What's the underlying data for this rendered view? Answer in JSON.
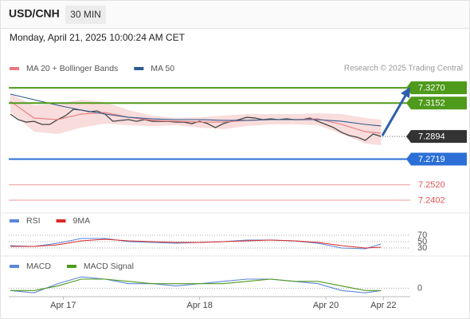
{
  "header": {
    "symbol": "USD/CNH",
    "interval": "30 MIN",
    "timestamp": "Monday, April 21, 2025 10:00:24 AM CET"
  },
  "chart_data": [
    {
      "type": "line",
      "source": "Research © 2025 Trading Central",
      "xlim": [
        -0.2,
        50.7
      ],
      "ylim": [
        7.2334,
        7.3332
      ],
      "price": {
        "color": "#444444",
        "values": [
          7.3067,
          7.3024,
          7.3005,
          7.3011,
          7.2987,
          7.2987,
          7.3024,
          7.3054,
          7.3104,
          7.3098,
          7.3085,
          7.3091,
          7.3067,
          7.3011,
          7.3018,
          7.3024,
          7.3011,
          7.3024,
          7.3011,
          7.3011,
          7.3011,
          7.3005,
          7.3005,
          7.2993,
          7.3011,
          7.2993,
          7.2962,
          7.2993,
          7.3011,
          7.3024,
          7.3042,
          7.3036,
          7.3024,
          7.303,
          7.3024,
          7.303,
          7.3024,
          7.3024,
          7.3036,
          7.3011,
          7.2987,
          7.2962,
          7.2925,
          7.2901,
          7.2888,
          7.2864,
          7.2913,
          7.2894
        ]
      },
      "series": [
        {
          "name": "MA 20 + Bollinger Bands",
          "color": "#e8797a",
          "band_color": "#f7d3d3",
          "x": [
            0,
            3,
            6,
            9,
            12,
            15,
            18,
            21,
            24,
            27,
            30,
            33,
            36,
            39,
            42,
            45,
            47
          ],
          "values": [
            7.3165,
            7.3036,
            7.3024,
            7.3067,
            7.3079,
            7.3042,
            7.3018,
            7.3011,
            7.3005,
            7.3005,
            7.3018,
            7.3024,
            7.3024,
            7.303,
            7.2987,
            7.2931,
            7.2919
          ],
          "upper": [
            7.3221,
            7.3135,
            7.3147,
            7.3178,
            7.3159,
            7.3098,
            7.3055,
            7.3036,
            7.3042,
            7.3055,
            7.3067,
            7.3067,
            7.3067,
            7.3073,
            7.3067,
            7.3036,
            7.3024
          ],
          "lower": [
            7.3085,
            7.2931,
            7.2913,
            7.2962,
            7.2993,
            7.2981,
            7.2974,
            7.2981,
            7.2962,
            7.295,
            7.2974,
            7.2987,
            7.2987,
            7.2981,
            7.2913,
            7.2839,
            7.2827
          ]
        },
        {
          "name": "MA 50",
          "color": "#2f5a8f",
          "x": [
            0,
            3,
            6,
            9,
            12,
            15,
            18,
            21,
            24,
            27,
            30,
            33,
            36,
            39,
            42,
            45,
            47
          ],
          "values": [
            7.3221,
            7.3178,
            7.3135,
            7.3098,
            7.3067,
            7.3042,
            7.303,
            7.3024,
            7.3024,
            7.3018,
            7.3018,
            7.3024,
            7.3024,
            7.3024,
            7.3011,
            7.2987,
            7.2975
          ]
        }
      ],
      "levels": [
        {
          "value": 7.327,
          "label": "7.3270",
          "color": "#4e9a1b",
          "boxed": true,
          "line": "full"
        },
        {
          "value": 7.3152,
          "label": "7.3152",
          "color": "#4e9a1b",
          "boxed": true,
          "line": "full"
        },
        {
          "value": 7.2894,
          "label": "7.2894",
          "color": "#333333",
          "boxed": true,
          "line": "short"
        },
        {
          "value": 7.2719,
          "label": "7.2719",
          "color": "#2b6fd6",
          "boxed": true,
          "line": "full"
        },
        {
          "value": 7.252,
          "label": "7.2520",
          "color": "#e05555",
          "boxed": false,
          "line": "full"
        },
        {
          "value": 7.2402,
          "label": "7.2402",
          "color": "#e05555",
          "boxed": false,
          "line": "full"
        }
      ]
    },
    {
      "type": "line",
      "xlim": [
        -0.2,
        50.7
      ],
      "ylim": [
        12.5,
        87.5
      ],
      "yticks": [
        70,
        50,
        30
      ],
      "series": [
        {
          "name": "RSI",
          "color": "#5b86d9",
          "x": [
            0,
            3,
            6,
            9,
            12,
            15,
            18,
            21,
            24,
            27,
            30,
            33,
            36,
            39,
            42,
            45,
            47
          ],
          "values": [
            37.5,
            35,
            45,
            60,
            60,
            50,
            47.5,
            45,
            47.5,
            50,
            55,
            55,
            52.5,
            45,
            30,
            27.5,
            42.5
          ]
        },
        {
          "name": "9MA",
          "color": "#d92b2b",
          "x": [
            0,
            3,
            6,
            9,
            12,
            15,
            18,
            21,
            24,
            27,
            30,
            33,
            36,
            39,
            42,
            45,
            47
          ],
          "values": [
            35,
            35,
            40,
            52.5,
            57.5,
            52.5,
            50,
            47.5,
            47.5,
            50,
            52.5,
            55,
            52.5,
            47.5,
            37.5,
            30,
            32.5
          ]
        }
      ]
    },
    {
      "type": "line",
      "xlim": [
        -0.2,
        50.7
      ],
      "ylim": [
        -0.0003,
        0.0011
      ],
      "yticks": [
        0
      ],
      "xticks": [
        {
          "value": 6.7,
          "label": "Apr 17"
        },
        {
          "value": 24,
          "label": "Apr 18"
        },
        {
          "value": 40,
          "label": "Apr 20"
        },
        {
          "value": 47.3,
          "label": "Apr 22"
        }
      ],
      "series": [
        {
          "name": "MACD",
          "color": "#5b86d9",
          "x": [
            0,
            3,
            6,
            9,
            12,
            15,
            18,
            21,
            24,
            27,
            30,
            33,
            36,
            39,
            42,
            45,
            47
          ],
          "values": [
            -0.0001,
            -0.0002,
            0.0002,
            0.0005,
            0.0004,
            0.0002,
            0.0002,
            0.0001,
            0.0002,
            0.0003,
            0.0004,
            0.0004,
            0.0003,
            0.0002,
            -0.0001,
            -0.0002,
            -0.0001
          ]
        },
        {
          "name": "MACD Signal",
          "color": "#4e9a1b",
          "x": [
            0,
            3,
            6,
            9,
            12,
            15,
            18,
            21,
            24,
            27,
            30,
            33,
            36,
            39,
            42,
            45,
            47
          ],
          "values": [
            -0.0001,
            -0.0001,
            0.0001,
            0.0004,
            0.0004,
            0.0003,
            0.0002,
            0.0002,
            0.0002,
            0.0002,
            0.0003,
            0.0004,
            0.0003,
            0.0003,
            0.0001,
            -0.0001,
            -0.0001
          ]
        }
      ]
    }
  ]
}
